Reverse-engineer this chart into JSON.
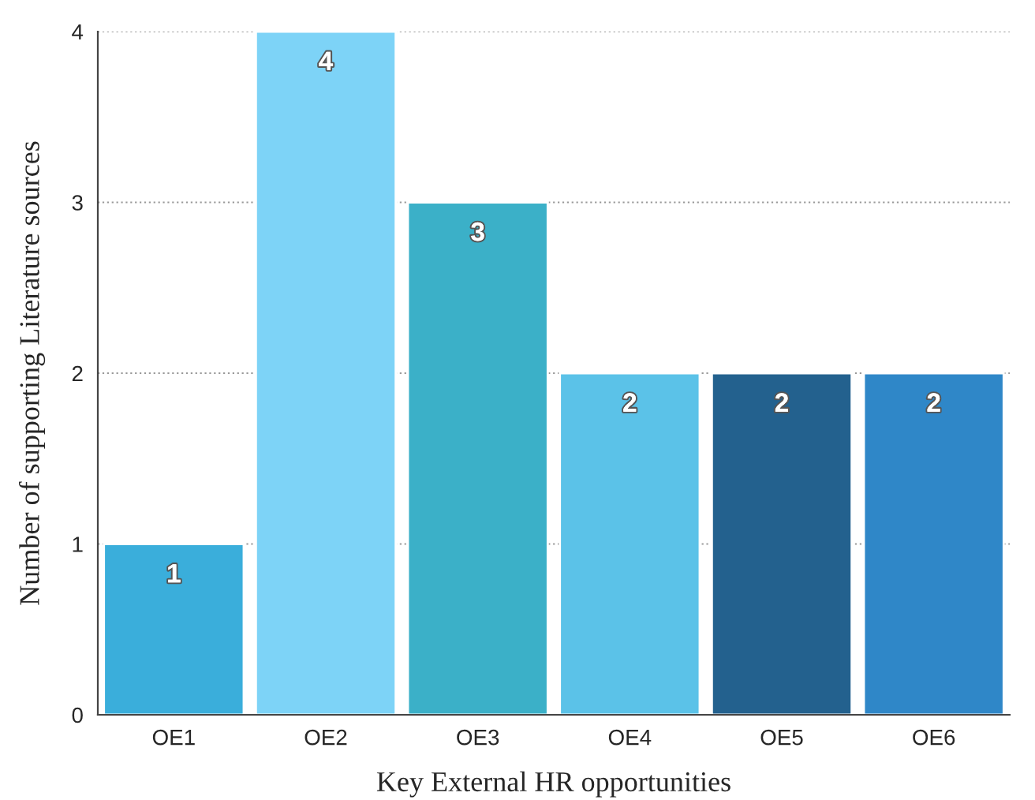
{
  "chart_data": {
    "type": "bar",
    "xlabel": "Key External HR opportunities",
    "ylabel": "Number of supporting Literature sources",
    "categories": [
      "OE1",
      "OE2",
      "OE3",
      "OE4",
      "OE5",
      "OE6"
    ],
    "values": [
      1,
      4,
      3,
      2,
      2,
      2
    ],
    "colors": [
      "#3aaedb",
      "#7dd3f7",
      "#3bb0c8",
      "#5bc2e8",
      "#23618e",
      "#2f87c8"
    ],
    "ylim": [
      0,
      4
    ],
    "yticks": [
      0,
      1,
      2,
      3,
      4
    ],
    "grid": "y",
    "data_labels": true
  }
}
